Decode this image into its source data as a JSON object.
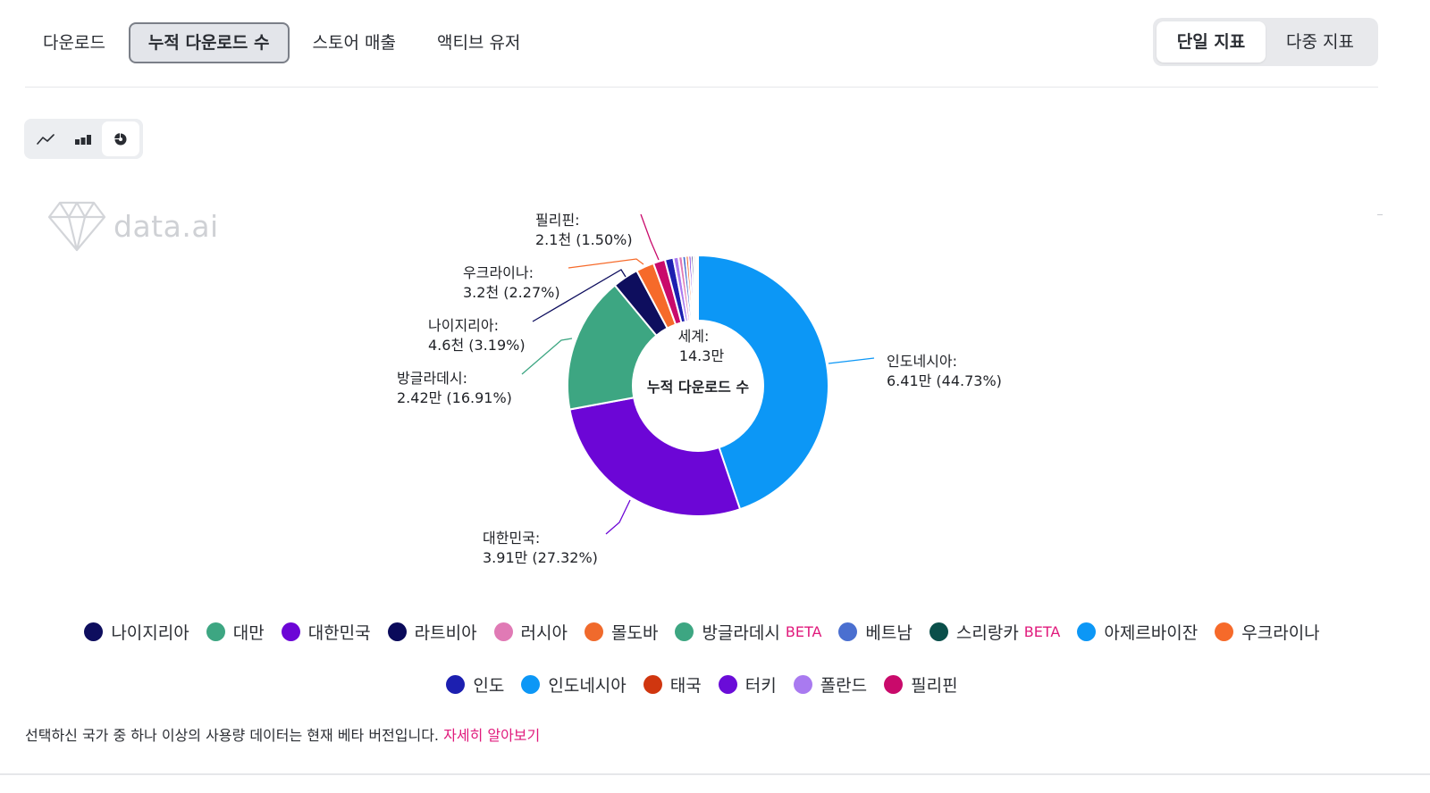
{
  "tabs": [
    {
      "label": "다운로드",
      "active": false
    },
    {
      "label": "누적 다운로드 수",
      "active": true
    },
    {
      "label": "스토어 매출",
      "active": false
    },
    {
      "label": "액티브 유저",
      "active": false
    }
  ],
  "metric_toggle": {
    "single": "단일 지표",
    "multi": "다중 지표",
    "active": "single"
  },
  "chart_type_buttons": [
    {
      "icon": "line-chart-icon",
      "active": false
    },
    {
      "icon": "bar-chart-icon",
      "active": false
    },
    {
      "icon": "pie-chart-icon",
      "active": true
    }
  ],
  "watermark": {
    "text": "data.ai",
    "icon": "diamond-logo-icon"
  },
  "chart_data": {
    "type": "pie",
    "donut": true,
    "center": {
      "title": "세계:",
      "total": "14.3만",
      "metric": "누적 다운로드 수"
    },
    "slices": [
      {
        "name": "인도네시아",
        "value": 64100,
        "display": "6.41만",
        "percent": 44.73,
        "color": "#0c97f6",
        "labeled": true
      },
      {
        "name": "대한민국",
        "value": 39100,
        "display": "3.91만",
        "percent": 27.32,
        "color": "#6c06d6",
        "labeled": true
      },
      {
        "name": "방글라데시",
        "value": 24200,
        "display": "2.42만",
        "percent": 16.91,
        "color": "#3da682",
        "labeled": true
      },
      {
        "name": "나이지리아",
        "value": 4600,
        "display": "4.6천",
        "percent": 3.19,
        "color": "#0e0e5e",
        "labeled": true
      },
      {
        "name": "우크라이나",
        "value": 3200,
        "display": "3.2천",
        "percent": 2.27,
        "color": "#f66a2a",
        "labeled": true
      },
      {
        "name": "필리핀",
        "value": 2100,
        "display": "2.1천",
        "percent": 1.5,
        "color": "#c90a6b",
        "labeled": true
      },
      {
        "name": "인도",
        "value": 1500,
        "percent": 1.05,
        "color": "#1c1fb0",
        "labeled": false
      },
      {
        "name": "폴란드",
        "value": 900,
        "percent": 0.62,
        "color": "#a97af0",
        "labeled": false
      },
      {
        "name": "러시아",
        "value": 700,
        "percent": 0.48,
        "color": "#e07ab5",
        "labeled": false
      },
      {
        "name": "베트남",
        "value": 600,
        "percent": 0.43,
        "color": "#4a6fd0",
        "labeled": false
      },
      {
        "name": "몰도바",
        "value": 500,
        "percent": 0.35,
        "color": "#f06a2c",
        "labeled": false
      },
      {
        "name": "터키",
        "value": 450,
        "percent": 0.32,
        "color": "#6a0cd8",
        "labeled": false
      },
      {
        "name": "라트비아",
        "value": 400,
        "percent": 0.28,
        "color": "#0a0a5a",
        "labeled": false
      },
      {
        "name": "태국",
        "value": 350,
        "percent": 0.24,
        "color": "#d0360f",
        "labeled": false
      },
      {
        "name": "대만",
        "value": 300,
        "percent": 0.2,
        "color": "#3da682",
        "labeled": false
      },
      {
        "name": "스리랑카",
        "value": 150,
        "percent": 0.1,
        "color": "#0a4f4a",
        "labeled": false
      }
    ]
  },
  "legend": {
    "row1": [
      {
        "name": "나이지리아",
        "color": "#0e0e5e",
        "beta": false
      },
      {
        "name": "대만",
        "color": "#3da682",
        "beta": false
      },
      {
        "name": "대한민국",
        "color": "#6c06d6",
        "beta": false
      },
      {
        "name": "라트비아",
        "color": "#0a0a5a",
        "beta": false
      },
      {
        "name": "러시아",
        "color": "#e07ab5",
        "beta": false
      },
      {
        "name": "몰도바",
        "color": "#f06a2c",
        "beta": false
      },
      {
        "name": "방글라데시",
        "color": "#3da682",
        "beta": true
      },
      {
        "name": "베트남",
        "color": "#4a6fd0",
        "beta": false
      },
      {
        "name": "스리랑카",
        "color": "#0a4f4a",
        "beta": true
      },
      {
        "name": "아제르바이잔",
        "color": "#0c97f6",
        "beta": false
      },
      {
        "name": "우크라이나",
        "color": "#f66a2a",
        "beta": false
      }
    ],
    "row2": [
      {
        "name": "인도",
        "color": "#1c1fb0",
        "beta": false
      },
      {
        "name": "인도네시아",
        "color": "#0c97f6",
        "beta": false
      },
      {
        "name": "태국",
        "color": "#d0360f",
        "beta": false
      },
      {
        "name": "터키",
        "color": "#6a0cd8",
        "beta": false
      },
      {
        "name": "폴란드",
        "color": "#a97af0",
        "beta": false
      },
      {
        "name": "필리핀",
        "color": "#c90a6b",
        "beta": false
      }
    ],
    "beta_label": "BETA"
  },
  "footnote": {
    "text": "선택하신 국가 중 하나 이상의 사용량 데이터는 현재 베타 버전입니다.",
    "link": "자세히 알아보기"
  }
}
